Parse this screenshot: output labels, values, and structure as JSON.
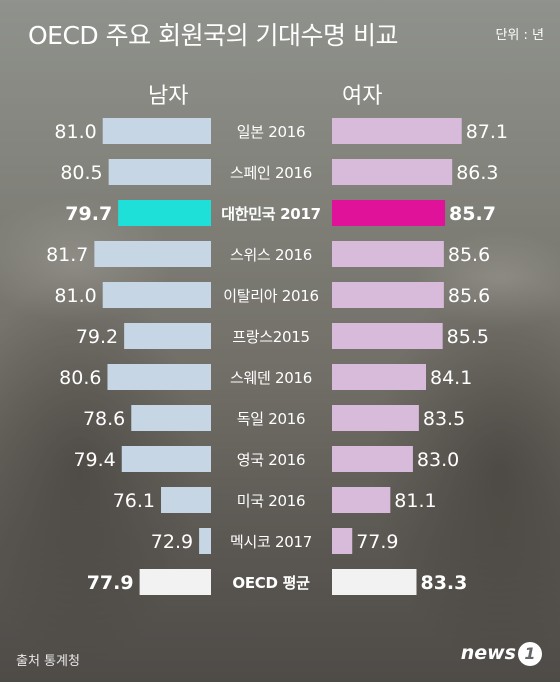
{
  "title": "OECD 주요 회원국의 기대수명 비교",
  "unit": "단위 : 년",
  "source": "출처 통계청",
  "logo": {
    "text": "news",
    "mark": "1"
  },
  "colors": {
    "men_bar": "#c6d6e4",
    "women_bar": "#d8bbdb",
    "korea_men": "#1ee0d8",
    "korea_women": "#e0129a",
    "oecd_bar": "#f2f2f2"
  },
  "chart_data": {
    "type": "bar",
    "series": [
      {
        "name": "남자",
        "values": [
          81.0,
          80.5,
          79.7,
          81.7,
          81.0,
          79.2,
          80.6,
          78.6,
          79.4,
          76.1,
          72.9,
          77.9
        ]
      },
      {
        "name": "여자",
        "values": [
          87.1,
          86.3,
          85.7,
          85.6,
          85.6,
          85.5,
          84.1,
          83.5,
          83.0,
          81.1,
          77.9,
          83.3
        ]
      }
    ],
    "categories": [
      "일본 2016",
      "스페인 2016",
      "대한민국 2017",
      "스위스 2016",
      "이탈리아 2016",
      "프랑스2015",
      "스웨덴 2016",
      "독일 2016",
      "영국 2016",
      "미국 2016",
      "멕시코 2017",
      "OECD 평균"
    ],
    "value_labels_men": [
      "81.0",
      "80.5",
      "79.7",
      "81.7",
      "81.0",
      "79.2",
      "80.6",
      "78.6",
      "79.4",
      "76.1",
      "72.9",
      "77.9"
    ],
    "value_labels_women": [
      "87.1",
      "86.3",
      "85.7",
      "85.6",
      "85.6",
      "85.5",
      "84.1",
      "83.5",
      "83.0",
      "81.1",
      "77.9",
      "83.3"
    ],
    "highlight_category": "대한민국 2017",
    "average_category": "OECD 평균"
  }
}
